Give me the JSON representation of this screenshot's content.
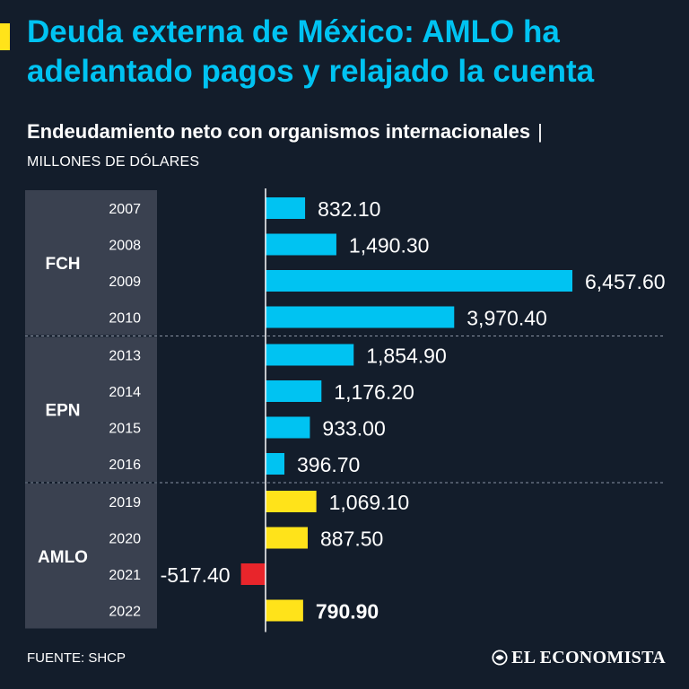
{
  "header": {
    "title": "Deuda externa de México: AMLO ha adelantado pagos y relajado la cuenta",
    "subtitle": "Endeudamiento neto con organismos internacionales",
    "subtitle_separator": "|",
    "units": "MILLONES DE DÓLARES"
  },
  "colors": {
    "background": "#131d2b",
    "title": "#00c3f2",
    "accent": "#ffe31a",
    "group_panel": "#3a4150",
    "bar_prior": "#00c3f2",
    "bar_amlo": "#ffe31a",
    "bar_negative": "#e8252b"
  },
  "chart_data": {
    "type": "bar",
    "orientation": "horizontal",
    "title": "Endeudamiento neto con organismos internacionales",
    "units": "MILLONES DE DÓLARES",
    "groups": [
      {
        "name": "FCH",
        "years": [
          "2007",
          "2008",
          "2009",
          "2010"
        ],
        "values": [
          832.1,
          1490.3,
          6457.6,
          3970.4
        ],
        "labels": [
          "832.10",
          "1,490.30",
          "6,457.60",
          "3,970.40"
        ]
      },
      {
        "name": "EPN",
        "years": [
          "2013",
          "2014",
          "2015",
          "2016"
        ],
        "values": [
          1854.9,
          1176.2,
          933.0,
          396.7
        ],
        "labels": [
          "1,854.90",
          "1,176.20",
          "933.00",
          "396.70"
        ]
      },
      {
        "name": "AMLO",
        "years": [
          "2019",
          "2020",
          "2021",
          "2022"
        ],
        "values": [
          1069.1,
          887.5,
          -517.4,
          790.9
        ],
        "labels": [
          "1,069.10",
          "887.50",
          "-517.40",
          "790.90"
        ]
      }
    ],
    "highlight_label": "790.90",
    "xlim": [
      -517.4,
      6457.6
    ]
  },
  "footer": {
    "source": "FUENTE: SHCP",
    "logo_text": "EL ECONOMISTA",
    "logo_icon": "economista-logo-icon"
  }
}
